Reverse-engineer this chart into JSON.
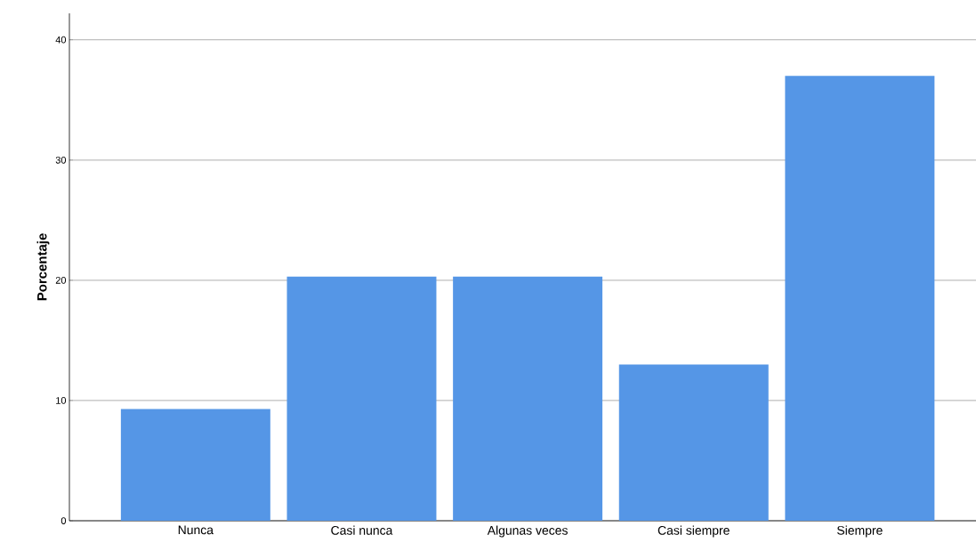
{
  "chart_data": {
    "type": "bar",
    "ylabel": "Porcentaje",
    "categories": [
      "Nunca",
      "Casi nunca",
      "Algunas veces",
      "Casi siempre",
      "Siempre"
    ],
    "values": [
      9.3,
      20.3,
      20.3,
      13.0,
      37.0
    ],
    "color": "#5596e6",
    "ylim": [
      0,
      42.2
    ],
    "yticks": [
      0,
      10,
      20,
      30,
      40
    ],
    "grid": "y"
  }
}
